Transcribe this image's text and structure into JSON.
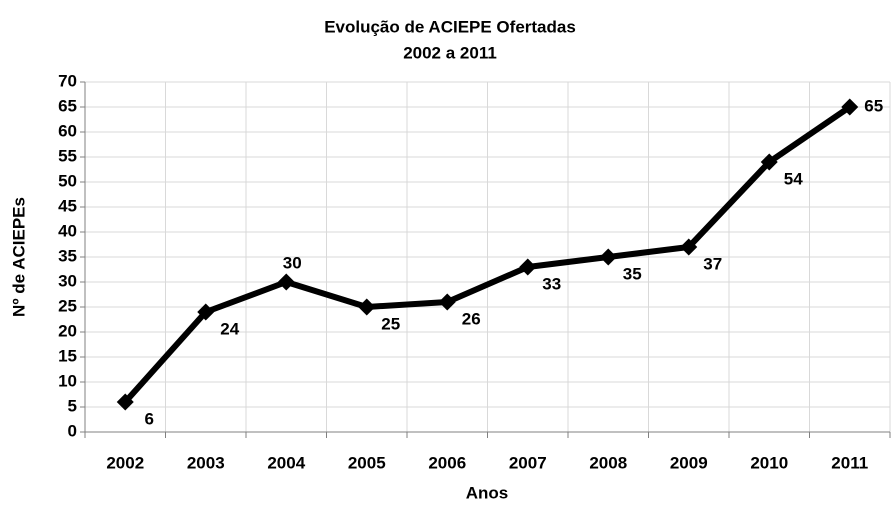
{
  "chart_data": {
    "type": "line",
    "title": "Evolução de ACIEPE Ofertadas",
    "subtitle": "2002 a 2011",
    "x_label": "Anos",
    "y_label": "Nº de ACIEPEs",
    "categories": [
      "2002",
      "2003",
      "2004",
      "2005",
      "2006",
      "2007",
      "2008",
      "2009",
      "2010",
      "2011"
    ],
    "values": [
      6,
      24,
      30,
      25,
      26,
      33,
      35,
      37,
      54,
      65
    ],
    "color": "#000000",
    "ylim": [
      0,
      70
    ],
    "yticks": [
      0,
      5,
      10,
      15,
      20,
      25,
      30,
      35,
      40,
      45,
      50,
      55,
      60,
      65,
      70
    ],
    "grid": true
  }
}
